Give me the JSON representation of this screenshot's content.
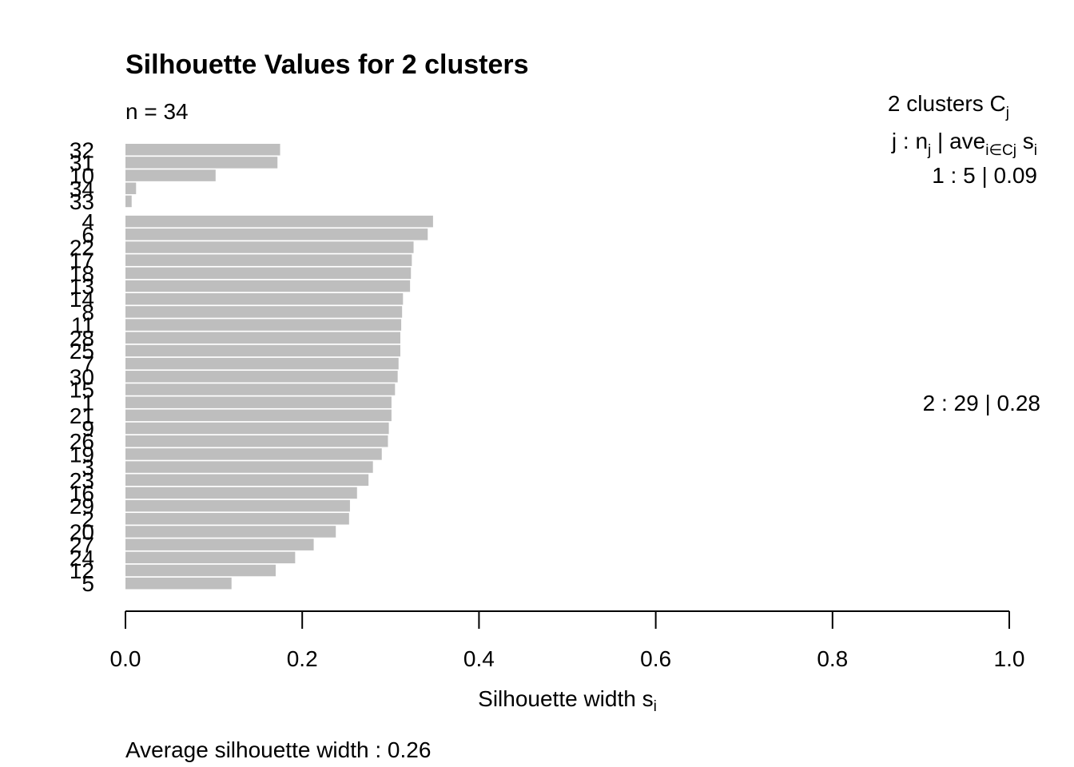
{
  "chart_data": {
    "type": "bar",
    "title": "Silhouette Values for 2 clusters",
    "subtitle": "n = 34",
    "xlabel": "Silhouette width",
    "xlabel_sub": "i",
    "xlabel_var": "s",
    "xlim": [
      0,
      1
    ],
    "x_ticks": [
      "0.0",
      "0.2",
      "0.4",
      "0.6",
      "0.8",
      "1.0"
    ],
    "bar_color": "#bebebe",
    "orientation": "horizontal",
    "legend": {
      "header": "2  clusters",
      "header_sym": "C",
      "header_sub": "j",
      "subheader_prefix": "j :  n",
      "subheader_nsub": "j",
      "subheader_mid": " | ave",
      "subheader_avesub": "i∈Cj",
      "subheader_s": "s",
      "subheader_ssub": "i",
      "position": "right"
    },
    "clusters": [
      {
        "summary": "1 :   5  |  0.09",
        "labels": [
          "32",
          "31",
          "10",
          "34",
          "33"
        ],
        "values": [
          0.175,
          0.172,
          0.102,
          0.012,
          0.007
        ]
      },
      {
        "summary": "2 :   29  |  0.28",
        "labels": [
          "4",
          "6",
          "22",
          "17",
          "18",
          "13",
          "14",
          "8",
          "11",
          "28",
          "25",
          "7",
          "30",
          "15",
          "1",
          "21",
          "9",
          "26",
          "19",
          "3",
          "23",
          "16",
          "29",
          "2",
          "20",
          "27",
          "24",
          "12",
          "5"
        ],
        "values": [
          0.348,
          0.342,
          0.326,
          0.324,
          0.323,
          0.322,
          0.314,
          0.313,
          0.312,
          0.311,
          0.311,
          0.309,
          0.308,
          0.305,
          0.301,
          0.301,
          0.298,
          0.297,
          0.29,
          0.28,
          0.275,
          0.262,
          0.254,
          0.253,
          0.238,
          0.213,
          0.192,
          0.17,
          0.12
        ]
      }
    ],
    "footer": "Average silhouette width :  0.26"
  }
}
